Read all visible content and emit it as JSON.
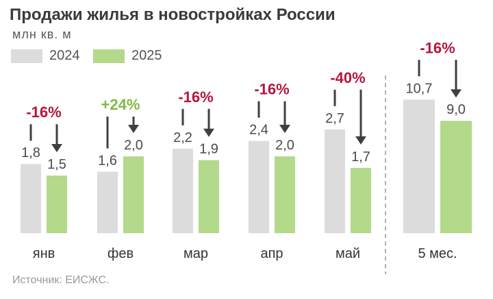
{
  "title": "Продажи жилья в новостройках России",
  "subtitle": "млн кв. м",
  "source": "Источник: ЕИСЖС.",
  "colors": {
    "y2024": "#dcdcdc",
    "y2025": "#b3d98b",
    "negative": "#b5163d",
    "positive": "#7dbb42",
    "text": "#4a4a4a",
    "arrow": "#3f3f3f"
  },
  "chart_data": {
    "type": "bar",
    "title": "Продажи жилья в новостройках России",
    "ylabel": "млн кв. м",
    "categories": [
      "янв",
      "фев",
      "мар",
      "апр",
      "май",
      "5 мес."
    ],
    "series": [
      {
        "name": "2024",
        "values": [
          1.8,
          1.6,
          2.2,
          2.4,
          2.7,
          10.7
        ],
        "labels": [
          "1,8",
          "1,6",
          "2,2",
          "2,4",
          "2,7",
          "10,7"
        ]
      },
      {
        "name": "2025",
        "values": [
          1.5,
          2.0,
          1.9,
          2.0,
          1.7,
          9.0
        ],
        "labels": [
          "1,5",
          "2,0",
          "1,9",
          "2,0",
          "1,7",
          "9,0"
        ]
      }
    ],
    "changes": [
      "-16%",
      "+24%",
      "-16%",
      "-16%",
      "-40%",
      "-16%"
    ],
    "change_positive": [
      false,
      true,
      false,
      false,
      false,
      false
    ],
    "legend": "top-left",
    "grid": false
  }
}
